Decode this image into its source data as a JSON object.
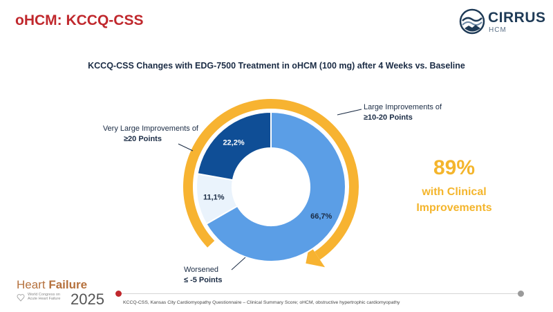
{
  "header": {
    "title": "oHCM: KCCQ-CSS",
    "logo_name": "CIRRUS",
    "logo_sub": "HCM"
  },
  "chart_data": {
    "type": "pie",
    "title": "KCCQ-CSS Changes with EDG-7500 Treatment in oHCM (100 mg) after 4 Weeks vs. Baseline",
    "slices": [
      {
        "label_line1": "Large Improvements of",
        "label_line2": "≥10-20 Points",
        "value": 66.7,
        "value_label": "66,7%",
        "color": "#5b9ee6"
      },
      {
        "label_line1": "Worsened",
        "label_line2": "≤ -5 Points",
        "value": 11.1,
        "value_label": "11,1%",
        "color": "#eaf3fc"
      },
      {
        "label_line1": "Very Large Improvements of",
        "label_line2": "≥20 Points",
        "value": 22.2,
        "value_label": "22,2%",
        "color": "#0f4e96"
      }
    ],
    "hole": "donut"
  },
  "callout": {
    "percent": "89%",
    "line1": "with Clinical",
    "line2": "Improvements",
    "color": "#f4b52c"
  },
  "footer": {
    "footnote": "KCCQ-CSS, Kansas City Cardiomyopathy Questionnaire – Clinical Summary Score; oHCM, obstructive hypertrophic cardiomyopathy",
    "brand_line_a": "Heart",
    "brand_line_b": "Failure",
    "brand_small": "World Congress on Acute Heart Failure",
    "brand_year": "2025"
  }
}
